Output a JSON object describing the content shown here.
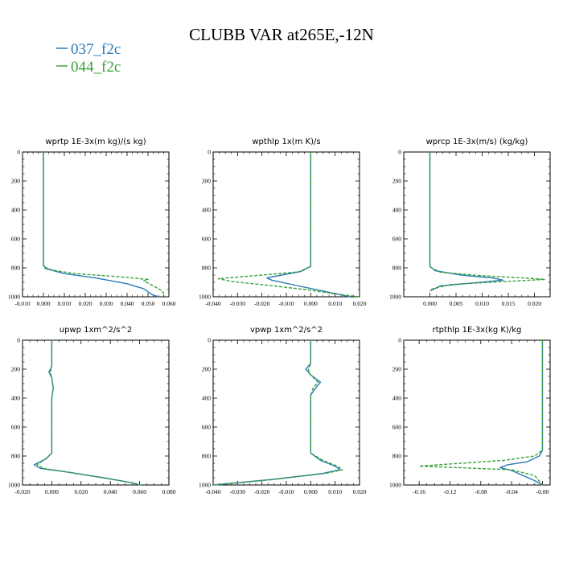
{
  "title": "CLUBB VAR at265E,-12N",
  "legend": [
    {
      "name": "037_f2c",
      "color": "#2a7ab8",
      "dash": "solid"
    },
    {
      "name": "044_f2c",
      "color": "#3aa03a",
      "dash": "dashed"
    }
  ],
  "chart_data": [
    {
      "type": "line",
      "title": "wprtp  1E-3x(m kg)/(s kg)",
      "xlim": [
        -0.01,
        0.06
      ],
      "ylim": [
        1000,
        0
      ],
      "xticks": [
        "-0.010",
        "0.000",
        "0.010",
        "0.020",
        "0.030",
        "0.040",
        "0.050",
        "0.060"
      ],
      "xtick_values": [
        -0.01,
        0.0,
        0.01,
        0.02,
        0.03,
        0.04,
        0.05,
        0.06
      ],
      "yticks": [
        "0",
        "200",
        "400",
        "600",
        "800",
        "1000"
      ],
      "ytick_values": [
        0,
        200,
        400,
        600,
        800,
        1000
      ],
      "series": [
        {
          "name": "037_f2c",
          "points": [
            [
              0,
              0
            ],
            [
              0,
              780
            ],
            [
              0.001,
              805
            ],
            [
              0.01,
              840
            ],
            [
              0.025,
              870
            ],
            [
              0.04,
              910
            ],
            [
              0.048,
              945
            ],
            [
              0.052,
              985
            ],
            [
              0.055,
              1000
            ]
          ]
        },
        {
          "name": "044_f2c",
          "points": [
            [
              0,
              0
            ],
            [
              0,
              790
            ],
            [
              0.004,
              815
            ],
            [
              0.015,
              840
            ],
            [
              0.035,
              860
            ],
            [
              0.05,
              880
            ],
            [
              0.048,
              890
            ],
            [
              0.052,
              920
            ],
            [
              0.057,
              960
            ],
            [
              0.058,
              1000
            ]
          ]
        }
      ]
    },
    {
      "type": "line",
      "title": "wpthlp  1x(m K)/s",
      "xlim": [
        -0.04,
        0.02
      ],
      "ylim": [
        1000,
        0
      ],
      "xticks": [
        "-0.040",
        "-0.030",
        "-0.020",
        "-0.010",
        "0.000",
        "0.010",
        "0.020"
      ],
      "xtick_values": [
        -0.04,
        -0.03,
        -0.02,
        -0.01,
        0.0,
        0.01,
        0.02
      ],
      "yticks": [
        "0",
        "200",
        "400",
        "600",
        "800",
        "1000"
      ],
      "ytick_values": [
        0,
        200,
        400,
        600,
        800,
        1000
      ],
      "series": [
        {
          "name": "037_f2c",
          "points": [
            [
              0,
              0
            ],
            [
              0,
              790
            ],
            [
              -0.004,
              825
            ],
            [
              -0.012,
              850
            ],
            [
              -0.018,
              870
            ],
            [
              -0.016,
              885
            ],
            [
              -0.005,
              925
            ],
            [
              0.005,
              960
            ],
            [
              0.012,
              985
            ],
            [
              0.016,
              1000
            ]
          ]
        },
        {
          "name": "044_f2c",
          "points": [
            [
              0,
              0
            ],
            [
              0,
              790
            ],
            [
              -0.005,
              828
            ],
            [
              -0.02,
              850
            ],
            [
              -0.038,
              875
            ],
            [
              -0.032,
              895
            ],
            [
              -0.015,
              925
            ],
            [
              0,
              955
            ],
            [
              0.01,
              980
            ],
            [
              0.02,
              1000
            ]
          ]
        }
      ]
    },
    {
      "type": "line",
      "title": "wprcp  1E-3x(m/s) (kg/kg)",
      "xlim": [
        -0.005,
        0.023
      ],
      "ylim": [
        1000,
        0
      ],
      "xticks": [
        "0.000",
        "0.005",
        "0.010",
        "0.015",
        "0.020"
      ],
      "xtick_values": [
        0.0,
        0.005,
        0.01,
        0.015,
        0.02
      ],
      "yticks": [
        "0",
        "200",
        "400",
        "600",
        "800",
        "1000"
      ],
      "ytick_values": [
        0,
        200,
        400,
        600,
        800,
        1000
      ],
      "series": [
        {
          "name": "037_f2c",
          "points": [
            [
              0,
              0
            ],
            [
              0,
              790
            ],
            [
              0.001,
              820
            ],
            [
              0.006,
              850
            ],
            [
              0.012,
              870
            ],
            [
              0.014,
              885
            ],
            [
              0.008,
              905
            ],
            [
              0.002,
              925
            ],
            [
              0,
              960
            ]
          ]
        },
        {
          "name": "044_f2c",
          "points": [
            [
              0,
              0
            ],
            [
              0,
              795
            ],
            [
              0.002,
              830
            ],
            [
              0.01,
              855
            ],
            [
              0.018,
              870
            ],
            [
              0.022,
              880
            ],
            [
              0.014,
              895
            ],
            [
              0.004,
              915
            ],
            [
              0,
              950
            ]
          ]
        }
      ]
    },
    {
      "type": "line",
      "title": "upwp  1xm^2/s^2",
      "xlim": [
        -0.02,
        0.08
      ],
      "ylim": [
        1000,
        0
      ],
      "xticks": [
        "-0.020",
        "0.000",
        "0.020",
        "0.040",
        "0.060",
        "0.080"
      ],
      "xtick_values": [
        -0.02,
        0.0,
        0.02,
        0.04,
        0.06,
        0.08
      ],
      "yticks": [
        "0",
        "200",
        "400",
        "600",
        "800",
        "1000"
      ],
      "ytick_values": [
        0,
        200,
        400,
        600,
        800,
        1000
      ],
      "series": [
        {
          "name": "037_f2c",
          "points": [
            [
              0,
              0
            ],
            [
              0,
              180
            ],
            [
              -0.002,
              220
            ],
            [
              0,
              260
            ],
            [
              0.001,
              330
            ],
            [
              0,
              400
            ],
            [
              0,
              780
            ],
            [
              -0.004,
              820
            ],
            [
              -0.012,
              860
            ],
            [
              -0.008,
              885
            ],
            [
              0.01,
              910
            ],
            [
              0.035,
              950
            ],
            [
              0.055,
              985
            ],
            [
              0.06,
              1000
            ]
          ]
        },
        {
          "name": "044_f2c",
          "points": [
            [
              0,
              0
            ],
            [
              0,
              180
            ],
            [
              -0.001,
              220
            ],
            [
              0,
              260
            ],
            [
              0.001,
              330
            ],
            [
              0,
              400
            ],
            [
              0,
              780
            ],
            [
              -0.005,
              825
            ],
            [
              -0.01,
              860
            ],
            [
              -0.006,
              885
            ],
            [
              0.012,
              912
            ],
            [
              0.037,
              952
            ],
            [
              0.056,
              987
            ],
            [
              0.061,
              1000
            ]
          ]
        }
      ]
    },
    {
      "type": "line",
      "title": "vpwp  1xm^2/s^2",
      "xlim": [
        -0.04,
        0.02
      ],
      "ylim": [
        1000,
        0
      ],
      "xticks": [
        "-0.040",
        "-0.030",
        "-0.020",
        "-0.010",
        "0.000",
        "0.010",
        "0.020"
      ],
      "xtick_values": [
        -0.04,
        -0.03,
        -0.02,
        -0.01,
        0.0,
        0.01,
        0.02
      ],
      "yticks": [
        "0",
        "200",
        "400",
        "600",
        "800",
        "1000"
      ],
      "ytick_values": [
        0,
        200,
        400,
        600,
        800,
        1000
      ],
      "series": [
        {
          "name": "037_f2c",
          "points": [
            [
              0,
              0
            ],
            [
              0,
              160
            ],
            [
              -0.002,
              200
            ],
            [
              0,
              240
            ],
            [
              0.004,
              290
            ],
            [
              0.002,
              330
            ],
            [
              0,
              380
            ],
            [
              0,
              780
            ],
            [
              0.004,
              830
            ],
            [
              0.01,
              870
            ],
            [
              0.012,
              895
            ],
            [
              0.005,
              920
            ],
            [
              -0.015,
              960
            ],
            [
              -0.04,
              1000
            ]
          ]
        },
        {
          "name": "044_f2c",
          "points": [
            [
              0,
              0
            ],
            [
              0,
              160
            ],
            [
              -0.001,
              200
            ],
            [
              0,
              240
            ],
            [
              0.003,
              290
            ],
            [
              0.001,
              330
            ],
            [
              0,
              380
            ],
            [
              0,
              780
            ],
            [
              0.005,
              830
            ],
            [
              0.011,
              870
            ],
            [
              0.013,
              895
            ],
            [
              0.006,
              920
            ],
            [
              -0.014,
              960
            ],
            [
              -0.039,
              1000
            ]
          ]
        }
      ]
    },
    {
      "type": "line",
      "title": "rtpthlp  1E-3x(kg K)/kg",
      "xlim": [
        -0.18,
        0.01
      ],
      "ylim": [
        1000,
        0
      ],
      "xticks": [
        "-0.16",
        "-0.12",
        "-0.08",
        "-0.04",
        "-0.00"
      ],
      "xtick_values": [
        -0.16,
        -0.12,
        -0.08,
        -0.04,
        0.0
      ],
      "yticks": [
        "0",
        "200",
        "400",
        "600",
        "800",
        "1000"
      ],
      "ytick_values": [
        0,
        200,
        400,
        600,
        800,
        1000
      ],
      "series": [
        {
          "name": "037_f2c",
          "points": [
            [
              0,
              0
            ],
            [
              0,
              760
            ],
            [
              -0.004,
              800
            ],
            [
              -0.02,
              840
            ],
            [
              -0.045,
              860
            ],
            [
              -0.055,
              880
            ],
            [
              -0.04,
              900
            ],
            [
              -0.025,
              935
            ],
            [
              -0.01,
              970
            ],
            [
              0,
              1000
            ]
          ]
        },
        {
          "name": "044_f2c",
          "points": [
            [
              0,
              0
            ],
            [
              0,
              760
            ],
            [
              -0.01,
              800
            ],
            [
              -0.05,
              830
            ],
            [
              -0.12,
              855
            ],
            [
              -0.16,
              870
            ],
            [
              -0.11,
              880
            ],
            [
              -0.04,
              895
            ],
            [
              -0.01,
              935
            ],
            [
              0,
              1000
            ]
          ]
        }
      ]
    }
  ]
}
